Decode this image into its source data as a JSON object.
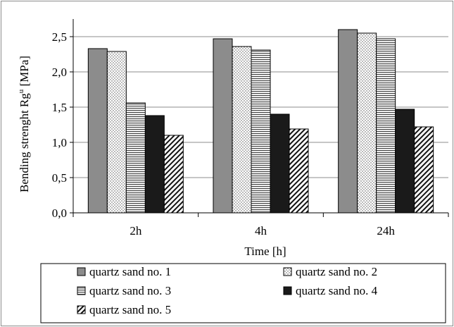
{
  "chart_data": {
    "type": "bar",
    "categories": [
      "2h",
      "4h",
      "24h"
    ],
    "series": [
      {
        "name": "quartz sand no. 1",
        "values": [
          2.33,
          2.47,
          2.6
        ],
        "pattern": "solid-gray",
        "color": "#8c8c8c"
      },
      {
        "name": "quartz sand no. 2",
        "values": [
          2.29,
          2.36,
          2.55
        ],
        "pattern": "dots",
        "color": "#ffffff"
      },
      {
        "name": "quartz sand no. 3",
        "values": [
          1.56,
          2.31,
          2.47
        ],
        "pattern": "horizontal-lines",
        "color": "#ffffff"
      },
      {
        "name": "quartz sand no. 4",
        "values": [
          1.38,
          1.4,
          1.47
        ],
        "pattern": "solid-dark",
        "color": "#1a1a1a"
      },
      {
        "name": "quartz sand no. 5",
        "values": [
          1.1,
          1.19,
          1.22
        ],
        "pattern": "diagonal-hatch",
        "color": "#ffffff"
      }
    ],
    "xlabel": "Time [h]",
    "ylabel": "Bending strenght Rg",
    "ylabel_sup": "u",
    "ylabel_unit": " [MPa]",
    "ylim": [
      0,
      2.5
    ],
    "yticks": [
      "0,0",
      "0,5",
      "1,0",
      "1,5",
      "2,0",
      "2,5"
    ],
    "ytick_values": [
      0,
      0.5,
      1.0,
      1.5,
      2.0,
      2.5
    ],
    "grid": true,
    "legend_position": "bottom"
  }
}
